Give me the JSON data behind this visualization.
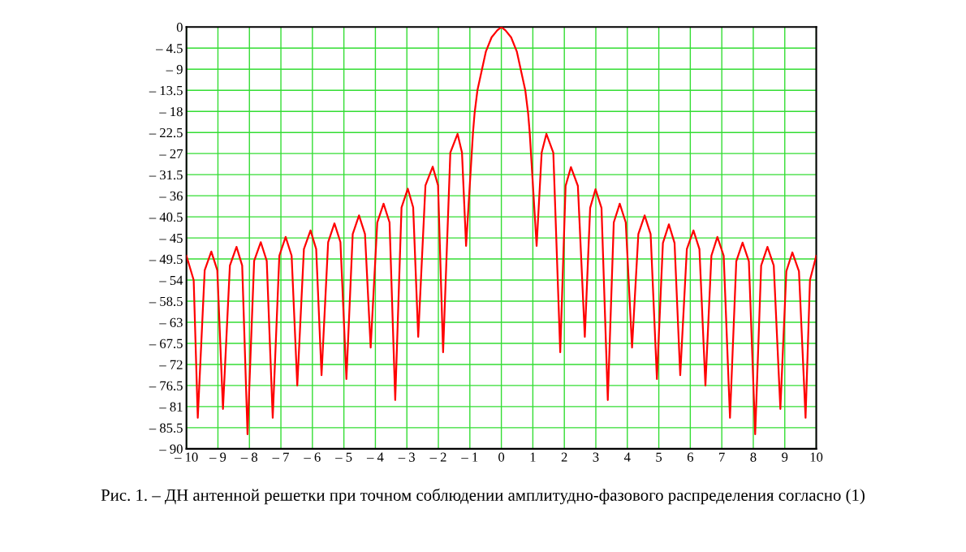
{
  "chart_data": {
    "type": "line",
    "x": [
      -10,
      -9.77,
      -9.64,
      -9.42,
      -9.21,
      -9.02,
      -8.84,
      -8.62,
      -8.41,
      -8.23,
      -8.06,
      -7.85,
      -7.64,
      -7.45,
      -7.26,
      -7.05,
      -6.85,
      -6.66,
      -6.48,
      -6.27,
      -6.06,
      -5.88,
      -5.71,
      -5.5,
      -5.3,
      -5.11,
      -4.92,
      -4.72,
      -4.52,
      -4.33,
      -4.15,
      -3.94,
      -3.74,
      -3.55,
      -3.37,
      -3.17,
      -2.97,
      -2.8,
      -2.64,
      -2.41,
      -2.18,
      -2.01,
      -1.85,
      -1.62,
      -1.39,
      -1.25,
      -1.12,
      -0.9,
      -0.85,
      -0.76,
      -0.49,
      -0.31,
      -0.13,
      0,
      0.13,
      0.31,
      0.49,
      0.76,
      0.85,
      0.9,
      1.12,
      1.28,
      1.43,
      1.65,
      1.87,
      2.04,
      2.21,
      2.43,
      2.65,
      2.82,
      2.99,
      3.18,
      3.38,
      3.57,
      3.76,
      3.95,
      4.15,
      4.35,
      4.55,
      4.74,
      4.94,
      5.13,
      5.32,
      5.5,
      5.68,
      5.89,
      6.1,
      6.29,
      6.48,
      6.67,
      6.86,
      7.06,
      7.26,
      7.46,
      7.66,
      7.86,
      8.06,
      8.25,
      8.45,
      8.65,
      8.86,
      9.05,
      9.24,
      9.45,
      9.66,
      9.8,
      10
    ],
    "series": [
      {
        "color": "#ff0000",
        "values": [
          -48.8,
          -54,
          -83.4,
          -51.9,
          -47.9,
          -51.9,
          -81.5,
          -50.9,
          -46.9,
          -50.9,
          -86.9,
          -49.9,
          -45.9,
          -49.9,
          -83.4,
          -48.8,
          -44.8,
          -48.8,
          -76.5,
          -47.4,
          -43.4,
          -47.4,
          -74.3,
          -45.9,
          -41.9,
          -45.9,
          -75.1,
          -44.2,
          -40.2,
          -44.2,
          -68.4,
          -41.7,
          -37.7,
          -41.7,
          -79.6,
          -38.5,
          -34.5,
          -38.5,
          -66.1,
          -33.8,
          -29.8,
          -33.8,
          -69.4,
          -26.8,
          -22.8,
          -26.8,
          -46.7,
          -22.5,
          -18.4,
          -13.5,
          -5.2,
          -2.2,
          -0.7,
          0,
          -0.7,
          -2.2,
          -5.2,
          -13.5,
          -18.4,
          -22.5,
          -46.7,
          -26.8,
          -22.8,
          -26.8,
          -69.4,
          -33.9,
          -29.9,
          -33.9,
          -66.1,
          -38.6,
          -34.6,
          -38.6,
          -79.6,
          -41.7,
          -37.7,
          -41.7,
          -68.4,
          -44.2,
          -40.2,
          -44.2,
          -75.1,
          -46.1,
          -42.1,
          -46.1,
          -74.3,
          -47.4,
          -43.4,
          -47.4,
          -76.5,
          -48.8,
          -44.8,
          -48.8,
          -83.4,
          -50,
          -46,
          -50,
          -86.9,
          -50.9,
          -46.9,
          -50.9,
          -81.5,
          -52.1,
          -48.1,
          -52.1,
          -83.4,
          -54,
          -48.8
        ]
      }
    ],
    "xlim": [
      -10,
      10
    ],
    "xticks": [
      {
        "value": -10,
        "label": "– 10"
      },
      {
        "value": -9,
        "label": "– 9"
      },
      {
        "value": -8,
        "label": "– 8"
      },
      {
        "value": -7,
        "label": "– 7"
      },
      {
        "value": -6,
        "label": "– 6"
      },
      {
        "value": -5,
        "label": "– 5"
      },
      {
        "value": -4,
        "label": "– 4"
      },
      {
        "value": -3,
        "label": "– 3"
      },
      {
        "value": -2,
        "label": "– 2"
      },
      {
        "value": -1,
        "label": "– 1"
      },
      0,
      1,
      2,
      3,
      4,
      5,
      6,
      7,
      8,
      9,
      10
    ],
    "ylim": [
      -90,
      0
    ],
    "yticks": [
      0,
      {
        "value": -4.5,
        "label": "– 4.5"
      },
      {
        "value": -9,
        "label": "– 9"
      },
      {
        "value": -13.5,
        "label": "– 13.5"
      },
      {
        "value": -18,
        "label": "– 18"
      },
      {
        "value": -22.5,
        "label": "– 22.5"
      },
      {
        "value": -27,
        "label": "– 27"
      },
      {
        "value": -31.5,
        "label": "– 31.5"
      },
      {
        "value": -36,
        "label": "– 36"
      },
      {
        "value": -40.5,
        "label": "– 40.5"
      },
      {
        "value": -45,
        "label": "– 45"
      },
      {
        "value": -49.5,
        "label": "– 49.5"
      },
      {
        "value": -54,
        "label": "– 54"
      },
      {
        "value": -58.5,
        "label": "– 58.5"
      },
      {
        "value": -63,
        "label": "– 63"
      },
      {
        "value": -67.5,
        "label": "– 67.5"
      },
      {
        "value": -72,
        "label": "– 72"
      },
      {
        "value": -76.5,
        "label": "– 76.5"
      },
      {
        "value": -81,
        "label": "– 81"
      },
      {
        "value": -85.5,
        "label": "– 85.5"
      },
      {
        "value": -90,
        "label": "– 90"
      }
    ],
    "grid": true,
    "annotations": [
      "Рис. 1. – ДН антенной решетки при точном соблюдении амплитудно-фазового распределения согласно (1)"
    ]
  }
}
